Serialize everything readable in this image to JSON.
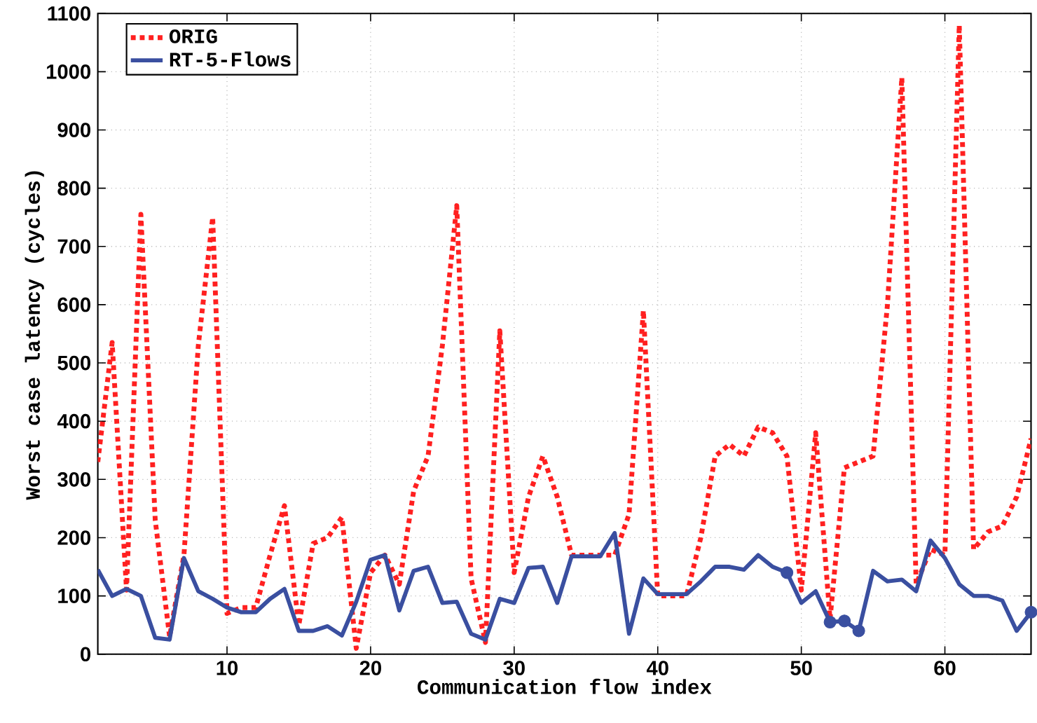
{
  "chart_data": {
    "type": "line",
    "xlabel": "Communication flow index",
    "ylabel": "Worst case latency (cycles)",
    "xlim": [
      1,
      66
    ],
    "xticks": [
      10,
      20,
      30,
      40,
      50,
      60
    ],
    "ylim": [
      0,
      1100
    ],
    "yticks": [
      0,
      100,
      200,
      300,
      400,
      500,
      600,
      700,
      800,
      900,
      1000,
      1100
    ],
    "grid": true,
    "legend": "top left",
    "marker": "none",
    "x": [
      1,
      2,
      3,
      4,
      5,
      6,
      7,
      8,
      9,
      10,
      11,
      12,
      13,
      14,
      15,
      16,
      17,
      18,
      19,
      20,
      21,
      22,
      23,
      24,
      25,
      26,
      27,
      28,
      29,
      30,
      31,
      32,
      33,
      34,
      35,
      36,
      37,
      38,
      39,
      40,
      41,
      42,
      43,
      44,
      45,
      46,
      47,
      48,
      49,
      50,
      51,
      52,
      53,
      54,
      55,
      56,
      57,
      58,
      59,
      60,
      61,
      62,
      63,
      64,
      65,
      66
    ],
    "series": [
      {
        "name": "ORIG",
        "color": "#ff2020",
        "line_style": "dotted",
        "values": [
          330,
          535,
          110,
          755,
          230,
          30,
          170,
          530,
          750,
          70,
          80,
          80,
          170,
          255,
          50,
          190,
          200,
          235,
          10,
          140,
          170,
          120,
          280,
          340,
          530,
          770,
          130,
          20,
          555,
          140,
          270,
          340,
          270,
          170,
          170,
          170,
          170,
          240,
          590,
          100,
          100,
          100,
          200,
          340,
          360,
          340,
          390,
          380,
          340,
          110,
          380,
          60,
          320,
          330,
          340,
          600,
          990,
          120,
          180,
          170,
          1080,
          180,
          210,
          220,
          270,
          370
        ]
      },
      {
        "name": "RT-5-Flows",
        "color": "#3a4fa0",
        "line_style": "solid",
        "values": [
          145,
          100,
          112,
          100,
          28,
          25,
          165,
          108,
          95,
          80,
          72,
          72,
          95,
          112,
          40,
          40,
          48,
          32,
          90,
          162,
          170,
          75,
          143,
          150,
          88,
          90,
          35,
          25,
          95,
          88,
          148,
          150,
          88,
          168,
          168,
          168,
          208,
          35,
          130,
          103,
          103,
          103,
          125,
          150,
          150,
          145,
          170,
          150,
          140,
          88,
          108,
          55,
          57,
          40,
          143,
          125,
          128,
          108,
          195,
          165,
          120,
          100,
          100,
          92,
          40,
          72
        ]
      },
      {
        "type": "scatter",
        "marker": "circle",
        "color": "#3a4fa0",
        "x": [
          49,
          52,
          53,
          54,
          66
        ],
        "values": [
          140,
          55,
          57,
          40,
          72
        ]
      }
    ]
  }
}
